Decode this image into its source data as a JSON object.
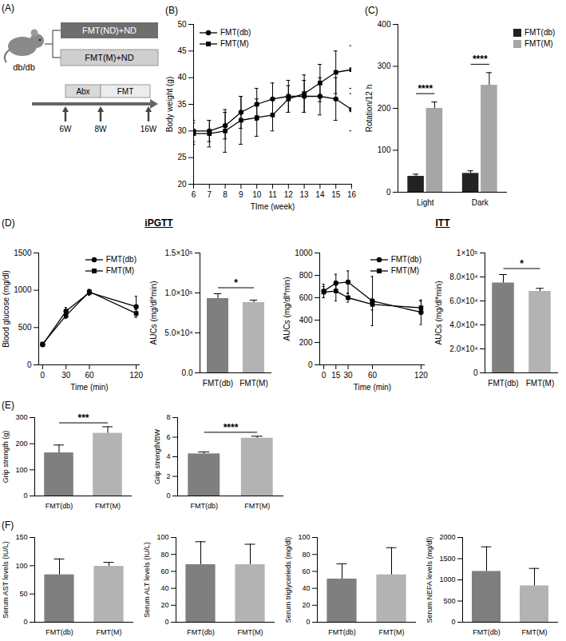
{
  "diagram": {
    "panel": "(A)",
    "mouse": "db/db",
    "groups": [
      "FMT(ND)+ND",
      "FMT(M)+ND"
    ],
    "phases": [
      "Abx",
      "FMT"
    ],
    "timepoints": [
      "6W",
      "8W",
      "16W"
    ]
  },
  "chart_data": [
    {
      "panel": "(B)",
      "type": "line",
      "x": [
        6,
        7,
        8,
        9,
        10,
        11,
        12,
        13,
        14,
        15,
        16
      ],
      "xlim": [
        6,
        16
      ],
      "xticks": [
        6,
        7,
        8,
        9,
        10,
        11,
        12,
        13,
        14,
        15,
        16
      ],
      "xlabel": "TIme (week)",
      "ylabel": "Body weight (g)",
      "ylim": [
        20,
        50
      ],
      "yticks": [
        20,
        25,
        30,
        35,
        40,
        45,
        50
      ],
      "legend": "top-left",
      "series": [
        {
          "name": "FMT(db)",
          "color": "#000000",
          "marker": "circle",
          "values": [
            30,
            30,
            31,
            33.5,
            35,
            36,
            36.5,
            36.5,
            36.5,
            36,
            34
          ],
          "errors": [
            2,
            2,
            2.5,
            3,
            3,
            3,
            3,
            3,
            3.5,
            4,
            4
          ]
        },
        {
          "name": "FMT(M)",
          "color": "#000000",
          "marker": "square",
          "values": [
            29.5,
            29.5,
            30,
            32,
            32.5,
            33,
            36,
            37,
            39,
            41,
            41.5
          ],
          "errors": [
            2,
            2.5,
            4,
            4.5,
            3.5,
            3,
            2.5,
            3.5,
            3.5,
            4,
            4.5
          ]
        }
      ]
    },
    {
      "panel": "(C)",
      "type": "bar",
      "categories": [
        "Light",
        "Dark"
      ],
      "ylabel": "Rotation/12 h",
      "ylim": [
        0,
        400
      ],
      "yticks": [
        0,
        100,
        200,
        300,
        400
      ],
      "legend": "right",
      "series": [
        {
          "name": "FMT(db)",
          "color": "#222222",
          "values": [
            38,
            45
          ],
          "errors": [
            5,
            6
          ]
        },
        {
          "name": "FMT(M)",
          "color": "#a6a6a6",
          "values": [
            200,
            255
          ],
          "errors": [
            15,
            30
          ]
        }
      ],
      "annotations": [
        {
          "category": "Light",
          "text": "****"
        },
        {
          "category": "Dark",
          "text": "****"
        }
      ]
    },
    {
      "panel": "(D)",
      "title": "iPGTT",
      "type": "line",
      "x": [
        0,
        30,
        60,
        120
      ],
      "xlim": [
        -5,
        125
      ],
      "xticks": [
        0,
        30,
        60,
        120
      ],
      "xlabel": "Time (min)",
      "ylabel": "Blood glucose (mg/dl)",
      "ylim": [
        0,
        1500
      ],
      "yticks": [
        0,
        500,
        1000,
        1500
      ],
      "legend": "top-right",
      "series": [
        {
          "name": "FMT(db)",
          "color": "#000000",
          "marker": "circle",
          "values": [
            270,
            720,
            970,
            780
          ],
          "errors": [
            20,
            50,
            40,
            140
          ]
        },
        {
          "name": "FMT(M)",
          "color": "#000000",
          "marker": "square",
          "values": [
            280,
            660,
            980,
            690
          ],
          "errors": [
            20,
            40,
            30,
            50
          ]
        }
      ]
    },
    {
      "type": "bar",
      "categories": [
        "FMT(db)",
        "FMT(M)"
      ],
      "values": [
        93000,
        88000
      ],
      "errors": [
        6000,
        3000
      ],
      "colors": [
        "#7f7f7f",
        "#b3b3b3"
      ],
      "ylabel": "AUCs (mg/dl*min)",
      "ylim": [
        0,
        150000
      ],
      "yticks": [
        {
          "value": 0,
          "label": "0.0"
        },
        {
          "value": 50000,
          "label": "5.0×10⁴"
        },
        {
          "value": 100000,
          "label": "1.0×10⁵"
        },
        {
          "value": 150000,
          "label": "1.5×10⁵"
        }
      ],
      "annotations": [
        {
          "text": "*"
        }
      ]
    },
    {
      "title": "ITT",
      "type": "line",
      "x": [
        0,
        15,
        30,
        60,
        120
      ],
      "xlim": [
        -5,
        125
      ],
      "xticks": [
        0,
        15,
        30,
        60,
        120
      ],
      "xlabel": "Time (min)",
      "ylabel": "AUCs (mg/dl*min)",
      "ylim": [
        0,
        1000
      ],
      "yticks": [
        0,
        200,
        400,
        600,
        800,
        1000
      ],
      "legend": "top-right",
      "series": [
        {
          "name": "FMT(db)",
          "color": "#000000",
          "marker": "circle",
          "values": [
            660,
            730,
            740,
            570,
            470
          ],
          "errors": [
            60,
            80,
            100,
            220,
            110
          ]
        },
        {
          "name": "FMT(M)",
          "color": "#000000",
          "marker": "square",
          "values": [
            650,
            660,
            600,
            540,
            510
          ],
          "errors": [
            50,
            90,
            40,
            50,
            60
          ]
        }
      ]
    },
    {
      "type": "bar",
      "categories": [
        "FMT(db)",
        "FMT(M)"
      ],
      "values": [
        75000,
        68000
      ],
      "errors": [
        7000,
        2500
      ],
      "colors": [
        "#7f7f7f",
        "#b3b3b3"
      ],
      "ylabel": "AUCs (mg/dl*min)",
      "ylim": [
        0,
        100000
      ],
      "yticks": [
        0,
        {
          "value": 20000,
          "label": "2.0×10⁴"
        },
        {
          "value": 40000,
          "label": "4.0×10⁴"
        },
        {
          "value": 60000,
          "label": "6.0×10⁴"
        },
        {
          "value": 80000,
          "label": "8.0×10⁴"
        },
        {
          "value": 100000,
          "label": "1×10⁵"
        }
      ],
      "annotations": [
        {
          "text": "*"
        }
      ]
    },
    {
      "panel": "(E)",
      "type": "bar",
      "categories": [
        "FMT(db)",
        "FMT(M)"
      ],
      "values": [
        165,
        240
      ],
      "errors": [
        30,
        25
      ],
      "colors": [
        "#7f7f7f",
        "#b3b3b3"
      ],
      "ylabel": "Grip strength (g)",
      "ylim": [
        0,
        300
      ],
      "yticks": [
        0,
        100,
        200,
        300
      ],
      "annotations": [
        {
          "text": "***"
        }
      ]
    },
    {
      "type": "bar",
      "categories": [
        "FMT(db)",
        "FMT(M)"
      ],
      "values": [
        4.3,
        5.9
      ],
      "errors": [
        0.2,
        0.2
      ],
      "colors": [
        "#7f7f7f",
        "#b3b3b3"
      ],
      "ylabel": "Grip strength/BW",
      "ylim": [
        0,
        8
      ],
      "yticks": [
        0,
        2,
        4,
        6,
        8
      ],
      "annotations": [
        {
          "text": "****"
        }
      ]
    },
    {
      "panel": "(F)",
      "type": "bar",
      "categories": [
        "FMT(db)",
        "FMT(M)"
      ],
      "values": [
        84,
        99
      ],
      "errors": [
        28,
        7
      ],
      "colors": [
        "#7f7f7f",
        "#b3b3b3"
      ],
      "ylabel": "Serum AST levels (IU/L)",
      "ylim": [
        0,
        150
      ],
      "yticks": [
        0,
        50,
        100,
        150
      ]
    },
    {
      "type": "bar",
      "categories": [
        "FMT(db)",
        "FMT(M)"
      ],
      "values": [
        68,
        68
      ],
      "errors": [
        27,
        24
      ],
      "colors": [
        "#7f7f7f",
        "#b3b3b3"
      ],
      "ylabel": "Serum ALT levels (IU/L)",
      "ylim": [
        0,
        100
      ],
      "yticks": [
        0,
        20,
        40,
        60,
        80,
        100
      ]
    },
    {
      "type": "bar",
      "categories": [
        "FMT(db)",
        "FMT(M)"
      ],
      "values": [
        51,
        56
      ],
      "errors": [
        18,
        32
      ],
      "colors": [
        "#7f7f7f",
        "#b3b3b3"
      ],
      "ylabel": "Serum triglycerieds (mg/dl)",
      "ylim": [
        0,
        100
      ],
      "yticks": [
        0,
        20,
        40,
        60,
        80,
        100
      ]
    },
    {
      "type": "bar",
      "categories": [
        "FMT(db)",
        "FMT(M)"
      ],
      "values": [
        1200,
        860
      ],
      "errors": [
        580,
        410
      ],
      "colors": [
        "#7f7f7f",
        "#b3b3b3"
      ],
      "ylabel": "Serum NEFA levels (mg/dl)",
      "ylim": [
        0,
        2000
      ],
      "yticks": [
        0,
        500,
        1000,
        1500,
        2000
      ]
    }
  ]
}
